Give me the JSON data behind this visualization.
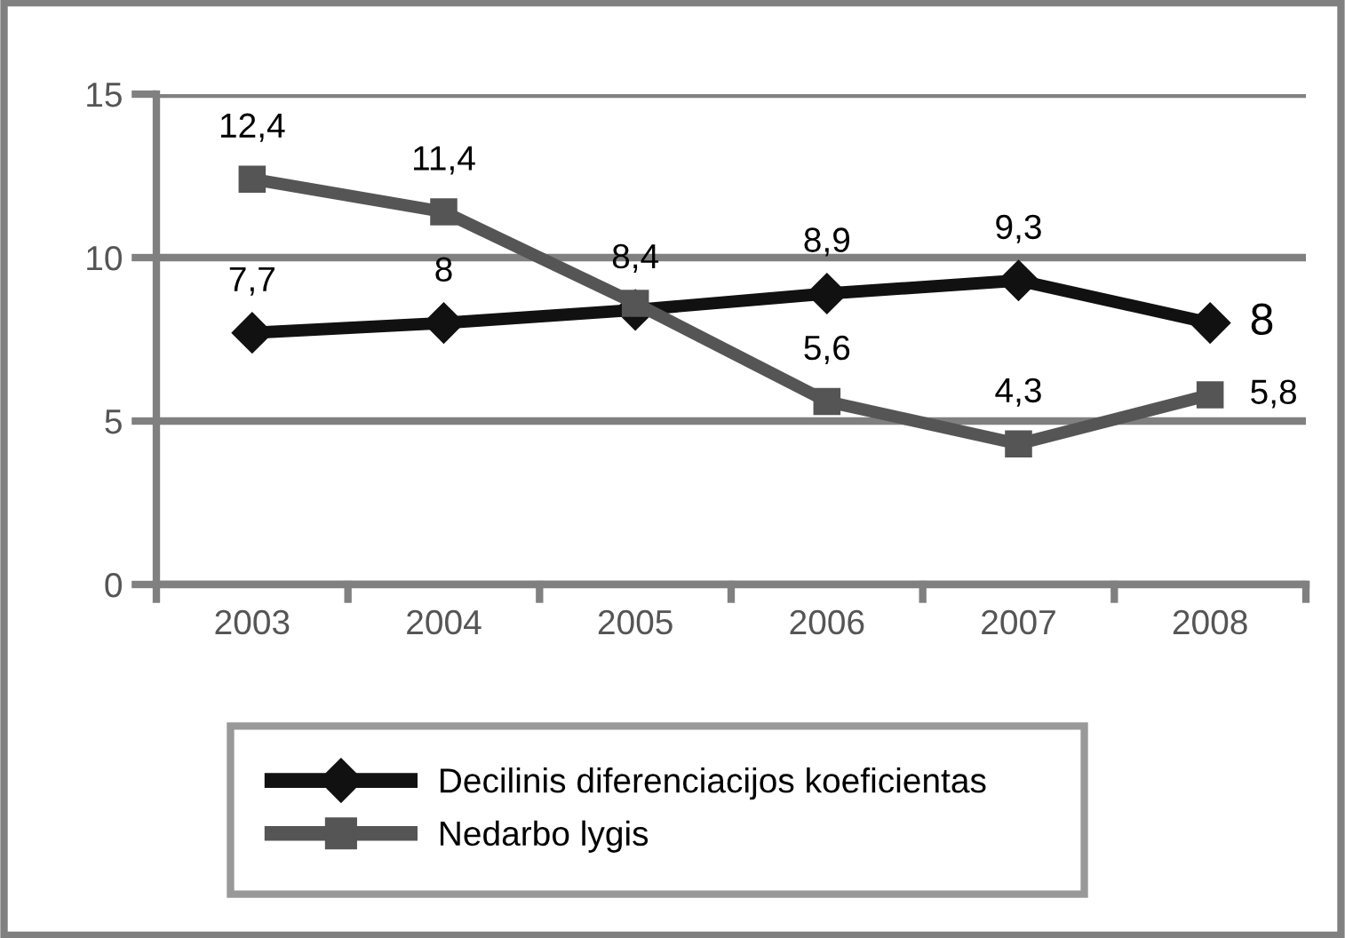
{
  "chart_data": {
    "type": "line",
    "categories": [
      "2003",
      "2004",
      "2005",
      "2006",
      "2007",
      "2008"
    ],
    "series": [
      {
        "name": "Decilinis diferenciacijos koeficientas",
        "color": "#111111",
        "marker": "diamond",
        "values": [
          7.7,
          8,
          8.4,
          8.9,
          9.3,
          8
        ],
        "value_labels": [
          "7,7",
          "8",
          "8,4",
          "8,9",
          "9,3",
          "8"
        ]
      },
      {
        "name": "Nedarbo lygis",
        "color": "#555555",
        "marker": "square",
        "values": [
          12.4,
          11.4,
          8.6,
          5.6,
          4.3,
          5.8
        ],
        "value_labels": [
          "12,4",
          "11,4",
          null,
          "5,6",
          "4,3",
          "5,8"
        ]
      }
    ],
    "ylim": [
      0,
      15
    ],
    "yticks": [
      0,
      5,
      10,
      15
    ],
    "grid": "y",
    "legend": "bottom",
    "line_style": "solid"
  }
}
